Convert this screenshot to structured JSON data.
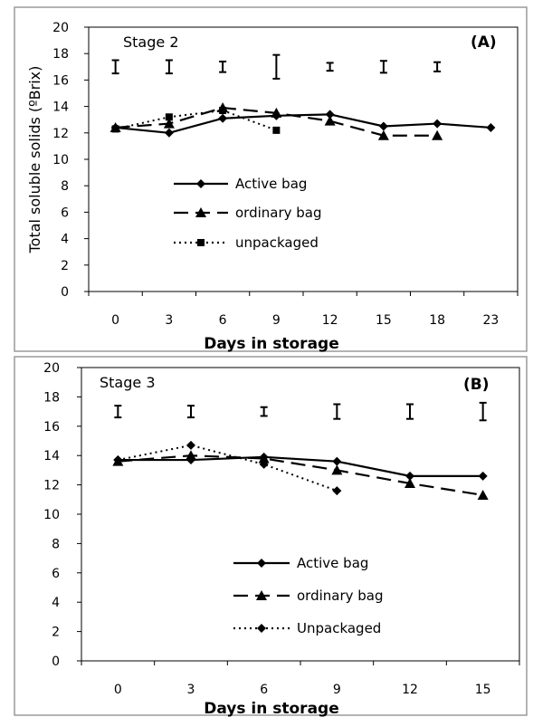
{
  "chart_data": [
    {
      "type": "line",
      "panel": "(A)",
      "stage": "Stage 2",
      "xlabel": "Days in storage",
      "ylabel": "Total soluble solids (ºBrix)",
      "ylim": [
        0,
        20
      ],
      "yticks": [
        0,
        2,
        4,
        6,
        8,
        10,
        12,
        14,
        16,
        18,
        20
      ],
      "categories": [
        "0",
        "3",
        "6",
        "9",
        "12",
        "15",
        "18",
        "23"
      ],
      "error_bar_y": 17,
      "error_half": [
        0.5,
        0.5,
        0.4,
        0.9,
        0.3,
        0.45,
        0.35,
        null
      ],
      "series": [
        {
          "name": "Active bag",
          "style": "solid",
          "marker": "diamond",
          "values": [
            12.4,
            12.0,
            13.1,
            13.3,
            13.4,
            12.5,
            12.7,
            12.4
          ]
        },
        {
          "name": "ordinary bag",
          "style": "dashed",
          "marker": "triangle",
          "values": [
            12.4,
            12.7,
            13.9,
            13.5,
            12.9,
            11.8,
            11.8,
            null
          ]
        },
        {
          "name": "unpackaged",
          "style": "dotted",
          "marker": "square",
          "values": [
            12.3,
            13.2,
            13.7,
            12.2,
            null,
            null,
            null,
            null
          ]
        }
      ],
      "legend_position": "center-left"
    },
    {
      "type": "line",
      "panel": "(B)",
      "stage": "Stage 3",
      "xlabel": "Days in storage",
      "ylabel": "",
      "ylim": [
        0,
        20
      ],
      "yticks": [
        0,
        2,
        4,
        6,
        8,
        10,
        12,
        14,
        16,
        18,
        20
      ],
      "categories": [
        "0",
        "3",
        "6",
        "9",
        "12",
        "15"
      ],
      "error_bar_y": 17,
      "error_half": [
        0.4,
        0.4,
        0.3,
        0.5,
        0.5,
        0.6
      ],
      "series": [
        {
          "name": "Active bag",
          "style": "solid",
          "marker": "diamond",
          "values": [
            13.7,
            13.7,
            13.9,
            13.6,
            12.6,
            12.6
          ]
        },
        {
          "name": "ordinary bag",
          "style": "dashed",
          "marker": "triangle",
          "values": [
            13.6,
            14.0,
            13.8,
            13.0,
            12.1,
            11.3
          ]
        },
        {
          "name": "Unpackaged",
          "style": "dotted",
          "marker": "diamond",
          "values": [
            13.7,
            14.7,
            13.4,
            11.6,
            null,
            null
          ]
        }
      ],
      "legend_position": "bottom-center"
    }
  ]
}
